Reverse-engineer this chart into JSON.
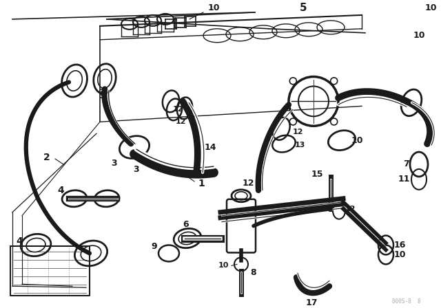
{
  "background_color": "#ffffff",
  "line_color": "#1a1a1a",
  "fig_width": 6.4,
  "fig_height": 4.48,
  "dpi": 100,
  "watermark": "000S-8  8"
}
